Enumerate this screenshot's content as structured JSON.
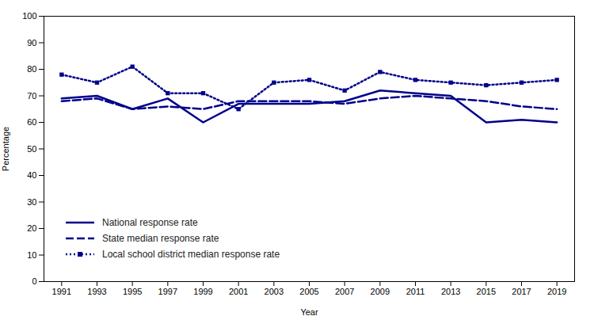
{
  "chart_data": {
    "type": "line",
    "xlabel": "Year",
    "ylabel": "Percentage",
    "x": [
      1991,
      1993,
      1995,
      1997,
      1999,
      2001,
      2003,
      2005,
      2007,
      2009,
      2011,
      2013,
      2015,
      2017,
      2019
    ],
    "series": [
      {
        "name": "National response rate",
        "color": "#00008B",
        "line_style": "solid",
        "values": [
          69,
          70,
          65,
          69,
          60,
          67,
          67,
          67,
          68,
          72,
          71,
          70,
          60,
          61,
          60
        ]
      },
      {
        "name": "State median response rate",
        "color": "#00008B",
        "line_style": "dashed",
        "values": [
          68,
          69,
          65,
          66,
          65,
          68,
          68,
          68,
          67,
          69,
          70,
          69,
          68,
          66,
          65
        ]
      },
      {
        "name": "Local school district median response rate",
        "color": "#00008B",
        "line_style": "dotted",
        "marker": "square",
        "values": [
          78,
          75,
          81,
          71,
          71,
          65,
          75,
          76,
          72,
          79,
          76,
          75,
          74,
          75,
          76
        ]
      }
    ],
    "xlim": [
      1990,
      2020
    ],
    "xticks": [
      1991,
      1993,
      1995,
      1997,
      1999,
      2001,
      2003,
      2005,
      2007,
      2009,
      2011,
      2013,
      2015,
      2017,
      2019
    ],
    "ylim": [
      0,
      100
    ],
    "yticks": [
      0,
      10,
      20,
      30,
      40,
      50,
      60,
      70,
      80,
      90,
      100
    ],
    "grid": false,
    "legend": "lower left"
  }
}
